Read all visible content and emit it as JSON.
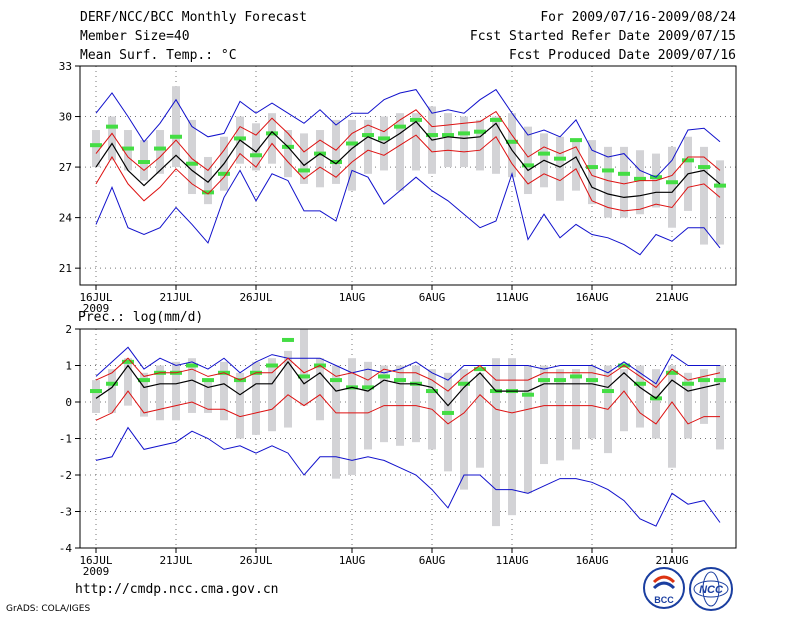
{
  "header": {
    "title": "DERF/NCC/BCC Monthly Forecast",
    "member_size": "Member Size=40",
    "variable": "Mean Surf. Temp.: °C",
    "period": "For 2009/07/16-2009/08/24",
    "refer_date": "Fcst Started Refer Date 2009/07/15",
    "produced_date": "Fcst Produced Date 2009/07/16"
  },
  "footer": {
    "url": "http://cmdp.ncc.cma.gov.cn",
    "credit": "GrADS: COLA/IGES",
    "logo_left_text": "BCC",
    "logo_right_text": "NCC"
  },
  "colors": {
    "box": "#d3d3d6",
    "median": "#44dd44",
    "mean": "#000000",
    "spread": "#dd1111",
    "extremes": "#1111cc"
  },
  "chart_data": [
    {
      "type": "box-line",
      "title": "Mean Surf. Temp.: °C",
      "x_tick_labels": [
        "16JUL",
        "21JUL",
        "26JUL",
        "1AUG",
        "6AUG",
        "11AUG",
        "16AUG",
        "21AUG"
      ],
      "x_tick_year": "2009",
      "y_tick_labels": [
        "21",
        "24",
        "27",
        "30",
        "33"
      ],
      "ylim": [
        20,
        33
      ],
      "y_ticks": [
        21,
        24,
        27,
        30,
        33
      ],
      "days": 40,
      "series": [
        {
          "name": "box_top",
          "values": [
            29.2,
            30.0,
            29.2,
            28.6,
            29.2,
            31.8,
            29.8,
            27.6,
            28.8,
            30.0,
            29.6,
            30.2,
            29.2,
            29.0,
            29.2,
            29.8,
            29.8,
            29.8,
            30.0,
            30.2,
            30.2,
            30.6,
            30.2,
            30.0,
            29.8,
            30.0,
            30.2,
            29.4,
            29.0,
            28.8,
            28.6,
            28.6,
            28.2,
            28.2,
            28.0,
            27.8,
            28.2,
            28.8,
            28.2,
            27.4
          ]
        },
        {
          "name": "box_bottom",
          "values": [
            27.0,
            27.4,
            26.8,
            26.2,
            26.6,
            27.0,
            25.4,
            24.8,
            25.6,
            27.2,
            26.8,
            27.2,
            26.4,
            26.0,
            25.8,
            26.0,
            25.6,
            26.6,
            26.8,
            25.6,
            26.8,
            26.6,
            27.0,
            27.0,
            26.8,
            26.6,
            26.4,
            25.4,
            25.8,
            25.0,
            25.6,
            24.8,
            24.0,
            24.0,
            24.2,
            24.6,
            23.4,
            24.4,
            22.4,
            22.4
          ]
        },
        {
          "name": "median",
          "values": [
            28.3,
            29.4,
            28.1,
            27.3,
            28.1,
            28.8,
            27.2,
            25.5,
            26.6,
            28.7,
            27.7,
            29.0,
            28.2,
            26.8,
            27.8,
            27.3,
            28.4,
            28.9,
            28.7,
            29.4,
            29.8,
            28.9,
            28.9,
            29.0,
            29.1,
            29.8,
            28.5,
            27.1,
            27.8,
            27.5,
            28.6,
            27.0,
            26.8,
            26.6,
            26.3,
            26.4,
            26.1,
            27.4,
            27.0,
            25.9
          ]
        },
        {
          "name": "mean",
          "values": [
            27.0,
            28.4,
            26.8,
            25.9,
            26.8,
            27.7,
            26.8,
            26.1,
            27.2,
            28.6,
            27.9,
            29.1,
            28.2,
            27.1,
            27.8,
            27.2,
            28.1,
            28.8,
            28.4,
            29.0,
            29.7,
            28.6,
            28.8,
            28.7,
            28.8,
            29.6,
            28.0,
            26.8,
            27.4,
            27.0,
            27.6,
            25.8,
            25.4,
            25.2,
            25.3,
            25.5,
            25.5,
            26.6,
            26.8,
            26.0
          ]
        },
        {
          "name": "mean_plus_sd",
          "values": [
            27.8,
            29.0,
            27.6,
            26.8,
            27.6,
            28.6,
            27.5,
            26.8,
            28.0,
            29.4,
            28.9,
            29.9,
            29.0,
            27.9,
            28.6,
            28.0,
            29.0,
            29.5,
            29.1,
            29.8,
            30.4,
            29.4,
            29.5,
            29.6,
            29.7,
            30.3,
            28.9,
            27.6,
            28.2,
            27.8,
            28.2,
            26.5,
            26.2,
            26.0,
            26.2,
            26.2,
            26.5,
            27.6,
            27.6,
            26.8
          ]
        },
        {
          "name": "mean_minus_sd",
          "values": [
            26.0,
            27.6,
            26.0,
            25.0,
            25.8,
            26.9,
            26.0,
            25.4,
            26.4,
            27.8,
            27.0,
            28.4,
            27.3,
            26.3,
            27.0,
            26.4,
            27.3,
            28.0,
            27.7,
            28.3,
            28.9,
            27.9,
            28.0,
            27.9,
            28.0,
            28.8,
            27.2,
            26.0,
            26.6,
            26.2,
            26.9,
            25.0,
            24.6,
            24.4,
            24.5,
            24.8,
            24.6,
            25.8,
            26.0,
            25.2
          ]
        },
        {
          "name": "max",
          "values": [
            30.2,
            31.4,
            30.0,
            28.5,
            29.6,
            31.0,
            29.4,
            28.8,
            29.0,
            30.9,
            30.2,
            30.8,
            30.2,
            29.6,
            30.4,
            29.5,
            30.2,
            30.2,
            31.0,
            31.4,
            31.6,
            30.2,
            30.4,
            30.2,
            31.0,
            31.6,
            30.2,
            28.9,
            29.2,
            28.8,
            29.8,
            28.0,
            27.6,
            27.8,
            26.8,
            26.4,
            27.4,
            29.2,
            29.3,
            28.5
          ]
        },
        {
          "name": "min",
          "values": [
            23.6,
            25.8,
            23.4,
            23.0,
            23.4,
            24.6,
            23.6,
            22.5,
            25.2,
            26.8,
            25.0,
            26.6,
            26.2,
            24.4,
            24.4,
            23.8,
            26.8,
            26.4,
            24.8,
            25.6,
            26.4,
            25.6,
            25.0,
            24.2,
            23.4,
            23.8,
            26.6,
            22.7,
            24.2,
            22.8,
            23.6,
            23.0,
            22.8,
            22.4,
            21.8,
            23.0,
            22.6,
            23.4,
            23.4,
            22.2
          ]
        }
      ]
    },
    {
      "type": "box-line",
      "title": "Prec.: log(mm/d)",
      "x_tick_labels": [
        "16JUL",
        "21JUL",
        "26JUL",
        "1AUG",
        "6AUG",
        "11AUG",
        "16AUG",
        "21AUG"
      ],
      "x_tick_year": "2009",
      "y_tick_labels": [
        "2",
        "1",
        "0",
        "-1",
        "-2",
        "-3",
        "-4"
      ],
      "ylim": [
        -4,
        2
      ],
      "y_ticks": [
        -4,
        -3,
        -2,
        -1,
        0,
        1,
        2
      ],
      "days": 40,
      "series": [
        {
          "name": "box_top",
          "values": [
            0.6,
            0.9,
            1.2,
            0.8,
            1.0,
            1.1,
            1.2,
            0.6,
            1.1,
            0.8,
            1.1,
            1.2,
            1.4,
            2.0,
            1.2,
            1.0,
            1.2,
            1.1,
            1.0,
            1.0,
            1.0,
            0.9,
            0.8,
            0.9,
            0.8,
            1.2,
            1.2,
            1.0,
            1.0,
            0.9,
            0.9,
            1.0,
            1.0,
            0.9,
            1.0,
            0.9,
            1.0,
            0.8,
            0.9,
            1.0
          ]
        },
        {
          "name": "box_bottom",
          "values": [
            -0.3,
            -0.3,
            -0.1,
            -0.4,
            -0.5,
            -0.5,
            -0.3,
            -0.3,
            -0.5,
            -1.0,
            -0.9,
            -0.8,
            -0.7,
            -0.1,
            -0.5,
            -2.1,
            -2.0,
            -1.3,
            -1.1,
            -1.2,
            -1.1,
            -1.3,
            -1.9,
            -2.4,
            -1.8,
            -3.4,
            -3.1,
            -2.5,
            -1.7,
            -1.6,
            -1.3,
            -1.0,
            -1.4,
            -0.8,
            -0.7,
            -1.0,
            -1.8,
            -1.0,
            -0.6,
            -1.3
          ]
        },
        {
          "name": "median",
          "values": [
            0.3,
            0.5,
            1.1,
            0.6,
            0.8,
            0.8,
            1.0,
            0.6,
            0.8,
            0.6,
            0.8,
            1.0,
            1.7,
            0.7,
            1.0,
            0.6,
            0.4,
            0.4,
            0.7,
            0.6,
            0.5,
            0.3,
            -0.3,
            0.5,
            0.9,
            0.3,
            0.3,
            0.2,
            0.6,
            0.6,
            0.7,
            0.6,
            0.3,
            1.0,
            0.5,
            0.1,
            0.8,
            0.5,
            0.6,
            0.6
          ]
        },
        {
          "name": "mean",
          "values": [
            0.1,
            0.4,
            1.0,
            0.4,
            0.5,
            0.5,
            0.6,
            0.4,
            0.5,
            0.2,
            0.5,
            0.5,
            1.1,
            0.5,
            0.8,
            0.3,
            0.4,
            0.3,
            0.6,
            0.5,
            0.5,
            0.4,
            -0.1,
            0.4,
            0.8,
            0.3,
            0.3,
            0.3,
            0.5,
            0.5,
            0.5,
            0.5,
            0.4,
            0.8,
            0.4,
            0.1,
            0.6,
            0.3,
            0.4,
            0.5
          ]
        },
        {
          "name": "mean_plus_sd",
          "values": [
            0.6,
            0.8,
            1.2,
            0.7,
            0.8,
            0.8,
            0.9,
            0.7,
            0.8,
            0.6,
            0.8,
            0.8,
            1.2,
            0.8,
            1.0,
            0.7,
            0.8,
            0.6,
            0.9,
            0.8,
            0.8,
            0.6,
            0.3,
            0.7,
            1.0,
            0.6,
            0.6,
            0.6,
            0.8,
            0.8,
            0.8,
            0.8,
            0.7,
            1.0,
            0.7,
            0.4,
            0.9,
            0.6,
            0.7,
            0.8
          ]
        },
        {
          "name": "mean_minus_sd",
          "values": [
            -0.5,
            -0.3,
            0.3,
            -0.3,
            -0.2,
            -0.1,
            0.0,
            -0.2,
            -0.2,
            -0.4,
            -0.3,
            -0.2,
            0.2,
            -0.1,
            0.2,
            -0.3,
            -0.3,
            -0.3,
            -0.1,
            -0.1,
            -0.1,
            -0.2,
            -0.6,
            -0.3,
            0.2,
            -0.2,
            -0.3,
            -0.2,
            -0.1,
            -0.1,
            -0.1,
            -0.1,
            -0.2,
            0.3,
            -0.3,
            -0.6,
            0.0,
            -0.6,
            -0.4,
            -0.4
          ]
        },
        {
          "name": "max",
          "values": [
            0.7,
            1.1,
            1.5,
            0.9,
            1.2,
            1.0,
            1.1,
            0.9,
            1.2,
            0.8,
            1.1,
            1.3,
            1.2,
            1.2,
            1.2,
            1.0,
            0.8,
            0.9,
            0.8,
            0.9,
            1.1,
            0.8,
            0.6,
            1.0,
            1.0,
            1.0,
            1.0,
            1.0,
            0.9,
            1.0,
            1.0,
            1.0,
            0.8,
            1.1,
            0.8,
            0.5,
            1.3,
            1.0,
            1.0,
            1.0
          ]
        },
        {
          "name": "min",
          "values": [
            -1.6,
            -1.5,
            -0.7,
            -1.3,
            -1.2,
            -1.1,
            -0.8,
            -1.0,
            -1.3,
            -1.2,
            -1.4,
            -1.2,
            -1.4,
            -2.0,
            -1.5,
            -1.5,
            -1.6,
            -1.5,
            -1.6,
            -1.8,
            -2.0,
            -2.4,
            -2.9,
            -2.0,
            -2.0,
            -2.4,
            -2.4,
            -2.5,
            -2.3,
            -2.1,
            -2.1,
            -2.2,
            -2.4,
            -2.7,
            -3.2,
            -3.4,
            -2.5,
            -2.8,
            -2.7,
            -3.3
          ]
        }
      ]
    }
  ]
}
